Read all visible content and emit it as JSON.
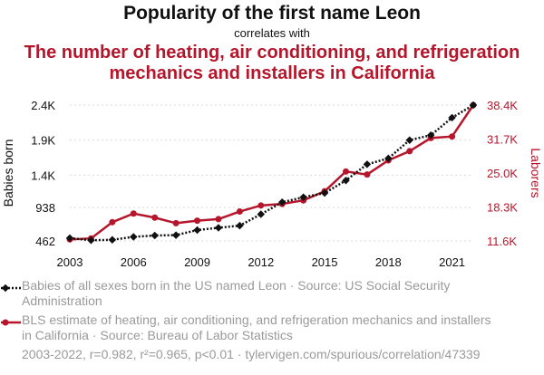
{
  "header": {
    "title": "Popularity of the first name Leon",
    "correlates": "correlates with",
    "subtitle_line1": "The number of heating, air conditioning, and refrigeration",
    "subtitle_line2": "mechanics and installers in California"
  },
  "legend": {
    "series1": "Babies of all sexes born in the US named Leon · Source: US Social Security Administration",
    "series2": "BLS estimate of heating, air conditioning, and refrigeration mechanics and installers in California · Source: Bureau of Labor Statistics"
  },
  "footer": "2003-2022, r=0.982, r²=0.965, p<0.01 · tylervigen.com/spurious/correlation/47339",
  "colors": {
    "series1": "#111111",
    "series2": "#b5162b"
  },
  "chart_data": {
    "type": "line",
    "title": "Popularity of the first name Leon",
    "x": [
      2003,
      2004,
      2005,
      2006,
      2007,
      2008,
      2009,
      2010,
      2011,
      2012,
      2013,
      2014,
      2015,
      2016,
      2017,
      2018,
      2019,
      2020,
      2021,
      2022
    ],
    "x_ticks": [
      "2003",
      "2006",
      "2009",
      "2012",
      "2015",
      "2018",
      "2021"
    ],
    "x_tick_values": [
      2003,
      2006,
      2009,
      2012,
      2015,
      2018,
      2021
    ],
    "y_left": {
      "label": "Babies born",
      "ticks": [
        "462",
        "938",
        "1.4K",
        "1.9K",
        "2.4K"
      ],
      "tick_values": [
        462,
        938,
        1400,
        1900,
        2400
      ],
      "range": [
        462,
        2400
      ]
    },
    "y_right": {
      "label": "Laborers",
      "ticks": [
        "11.6K",
        "18.3K",
        "25.0K",
        "31.7K",
        "38.4K"
      ],
      "tick_values": [
        11600,
        18300,
        25000,
        31700,
        38400
      ],
      "range": [
        11600,
        38400
      ]
    },
    "series": [
      {
        "name": "Babies of all sexes born in the US named Leon",
        "axis": "left",
        "marker": "diamond",
        "style": "dotted",
        "values": [
          502,
          472,
          478,
          520,
          540,
          545,
          617,
          650,
          680,
          843,
          1014,
          1085,
          1145,
          1325,
          1555,
          1640,
          1900,
          1970,
          2220,
          2400
        ]
      },
      {
        "name": "BLS estimate of heating, air conditioning, and refrigeration mechanics and installers in California",
        "axis": "right",
        "marker": "circle",
        "style": "solid",
        "values": [
          11900,
          12100,
          15300,
          17000,
          16200,
          15100,
          15600,
          15900,
          17400,
          18600,
          18900,
          19600,
          21400,
          25300,
          24700,
          27500,
          29300,
          31900,
          32200,
          38400
        ]
      }
    ]
  }
}
